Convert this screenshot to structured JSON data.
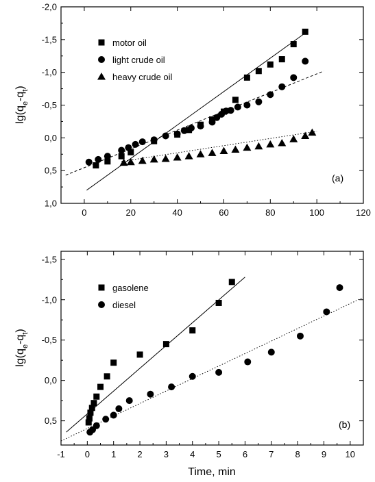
{
  "chart_data": [
    {
      "type": "scatter",
      "panel_label": "(a)",
      "xlabel": "",
      "ylabel_main": "lg(q",
      "ylabel_sub1": "e",
      "ylabel_mid": "-q",
      "ylabel_sub2": "t",
      "ylabel_end": ")",
      "xlim": [
        -10,
        120
      ],
      "ylim": [
        1.0,
        -2.0
      ],
      "y_inverted": true,
      "xticks": [
        0,
        20,
        40,
        60,
        80,
        100,
        120
      ],
      "xtick_labels": [
        "0",
        "20",
        "40",
        "60",
        "80",
        "100",
        "120"
      ],
      "yticks": [
        -2.0,
        -1.5,
        -1.0,
        -0.5,
        0.0,
        0.5,
        1.0
      ],
      "ytick_labels": [
        "-2,0",
        "-1,5",
        "-1,0",
        "-0,5",
        "0,0",
        "0,5",
        "1,0"
      ],
      "grid": false,
      "legend_position": "top-left",
      "series": [
        {
          "name": "motor oil",
          "marker": "square",
          "points": [
            [
              5,
              0.42
            ],
            [
              10,
              0.36
            ],
            [
              16,
              0.28
            ],
            [
              20,
              0.22
            ],
            [
              30,
              0.05
            ],
            [
              40,
              -0.05
            ],
            [
              45,
              -0.12
            ],
            [
              50,
              -0.2
            ],
            [
              55,
              -0.28
            ],
            [
              60,
              -0.4
            ],
            [
              65,
              -0.58
            ],
            [
              70,
              -0.92
            ],
            [
              75,
              -1.02
            ],
            [
              80,
              -1.12
            ],
            [
              85,
              -1.2
            ],
            [
              90,
              -1.43
            ],
            [
              95,
              -1.62
            ]
          ],
          "fit": {
            "x": [
              1,
              95
            ],
            "y": [
              0.8,
              -1.6
            ],
            "style": "solid"
          }
        },
        {
          "name": "light crude oil",
          "marker": "circle",
          "points": [
            [
              2,
              0.37
            ],
            [
              6,
              0.33
            ],
            [
              10,
              0.28
            ],
            [
              16,
              0.19
            ],
            [
              19,
              0.15
            ],
            [
              22,
              0.1
            ],
            [
              25,
              0.06
            ],
            [
              30,
              0.03
            ],
            [
              35,
              -0.03
            ],
            [
              40,
              -0.06
            ],
            [
              43,
              -0.11
            ],
            [
              46,
              -0.15
            ],
            [
              50,
              -0.18
            ],
            [
              55,
              -0.24
            ],
            [
              57,
              -0.31
            ],
            [
              59,
              -0.36
            ],
            [
              61,
              -0.41
            ],
            [
              63,
              -0.42
            ],
            [
              66,
              -0.47
            ],
            [
              70,
              -0.5
            ],
            [
              75,
              -0.55
            ],
            [
              80,
              -0.66
            ],
            [
              85,
              -0.78
            ],
            [
              90,
              -0.92
            ],
            [
              95,
              -1.17
            ]
          ],
          "fit": {
            "x": [
              -8,
              103
            ],
            "y": [
              0.57,
              -1.02
            ],
            "style": "dashed"
          }
        },
        {
          "name": "heavy crude oil",
          "marker": "triangle",
          "points": [
            [
              17,
              0.38
            ],
            [
              20,
              0.37
            ],
            [
              25,
              0.35
            ],
            [
              30,
              0.33
            ],
            [
              35,
              0.32
            ],
            [
              40,
              0.3
            ],
            [
              45,
              0.28
            ],
            [
              50,
              0.25
            ],
            [
              55,
              0.23
            ],
            [
              60,
              0.2
            ],
            [
              65,
              0.18
            ],
            [
              70,
              0.15
            ],
            [
              75,
              0.13
            ],
            [
              80,
              0.1
            ],
            [
              85,
              0.08
            ],
            [
              90,
              0.02
            ],
            [
              95,
              -0.03
            ],
            [
              98,
              -0.08
            ]
          ],
          "fit": {
            "x": [
              16,
              100
            ],
            "y": [
              0.36,
              -0.1
            ],
            "style": "dotted"
          }
        }
      ]
    },
    {
      "type": "scatter",
      "panel_label": "(b)",
      "xlabel": "Time, min",
      "ylabel_main": "lg(q",
      "ylabel_sub1": "e",
      "ylabel_mid": "-q",
      "ylabel_sub2": "t",
      "ylabel_end": ")",
      "xlim": [
        -1,
        10.5
      ],
      "ylim": [
        0.8,
        -1.6
      ],
      "y_inverted": true,
      "xticks": [
        -1,
        0,
        1,
        2,
        3,
        4,
        5,
        6,
        7,
        8,
        9,
        10
      ],
      "xtick_labels": [
        "-1",
        "0",
        "1",
        "2",
        "3",
        "4",
        "5",
        "6",
        "7",
        "8",
        "9",
        "10"
      ],
      "yticks": [
        -1.5,
        -1.0,
        -0.5,
        0.0,
        0.5
      ],
      "ytick_labels": [
        "-1,5",
        "-1,0",
        "-0,5",
        "0,0",
        "0,5"
      ],
      "grid": false,
      "legend_position": "top-left",
      "series": [
        {
          "name": "gasolene",
          "marker": "square",
          "points": [
            [
              0.05,
              0.52
            ],
            [
              0.08,
              0.47
            ],
            [
              0.12,
              0.4
            ],
            [
              0.18,
              0.34
            ],
            [
              0.25,
              0.28
            ],
            [
              0.35,
              0.2
            ],
            [
              0.5,
              0.08
            ],
            [
              0.75,
              -0.05
            ],
            [
              1.0,
              -0.22
            ],
            [
              2.0,
              -0.32
            ],
            [
              3.0,
              -0.45
            ],
            [
              4.0,
              -0.62
            ],
            [
              5.0,
              -0.96
            ],
            [
              5.5,
              -1.22
            ]
          ],
          "fit": {
            "x": [
              -0.8,
              6.0
            ],
            "y": [
              0.64,
              -1.28
            ],
            "style": "solid"
          }
        },
        {
          "name": "diesel",
          "marker": "circle",
          "points": [
            [
              0.1,
              0.64
            ],
            [
              0.2,
              0.61
            ],
            [
              0.35,
              0.56
            ],
            [
              0.7,
              0.48
            ],
            [
              1.0,
              0.43
            ],
            [
              1.2,
              0.35
            ],
            [
              1.6,
              0.25
            ],
            [
              2.4,
              0.17
            ],
            [
              3.2,
              0.08
            ],
            [
              4.0,
              -0.05
            ],
            [
              5.0,
              -0.1
            ],
            [
              6.1,
              -0.23
            ],
            [
              7.0,
              -0.35
            ],
            [
              8.1,
              -0.55
            ],
            [
              9.1,
              -0.85
            ],
            [
              9.6,
              -1.15
            ]
          ],
          "fit": {
            "x": [
              -1.0,
              10.5
            ],
            "y": [
              0.75,
              -1.03
            ],
            "style": "dotted"
          }
        }
      ]
    }
  ]
}
